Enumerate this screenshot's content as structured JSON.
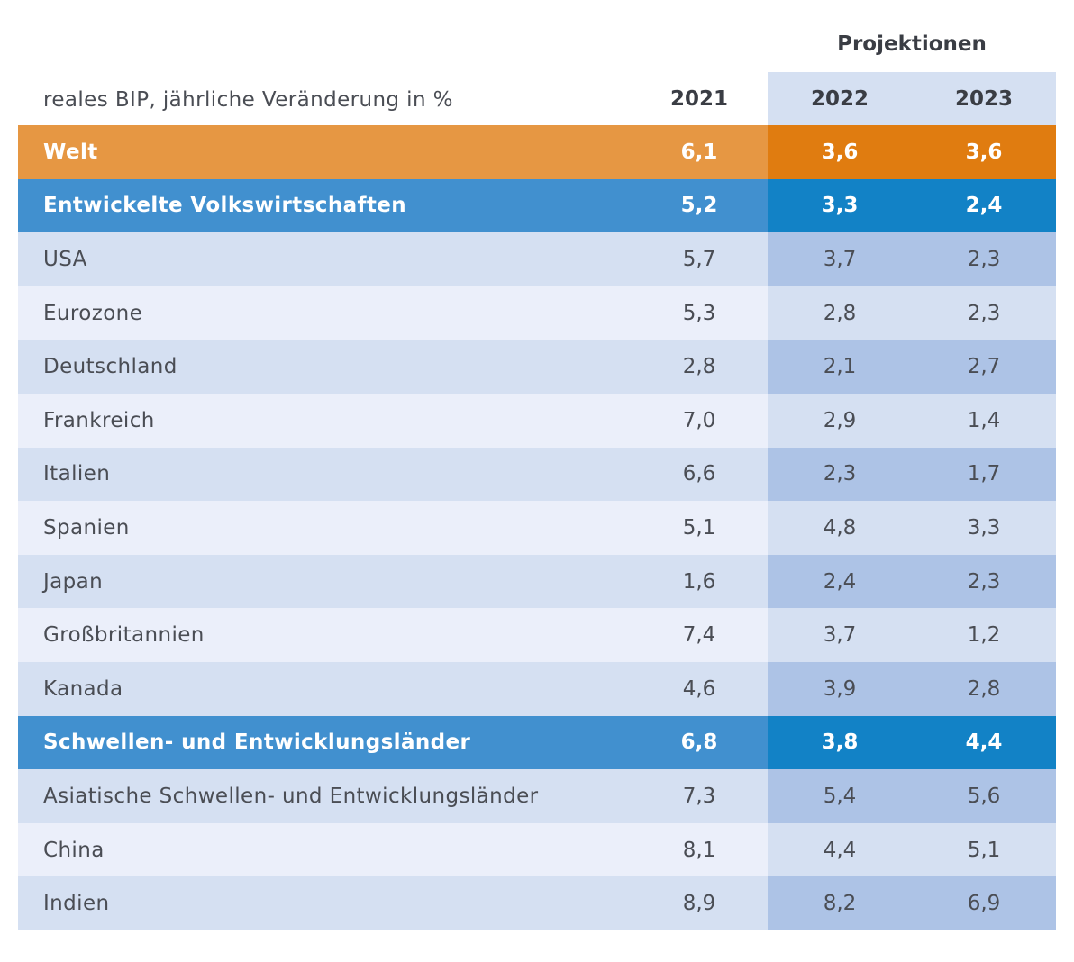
{
  "chart_data": {
    "type": "table",
    "title": "reales BIP, jährliche Veränderung in %",
    "group_label": "Projektionen",
    "columns": [
      "2021",
      "2022",
      "2023"
    ],
    "rows": [
      {
        "label": "Welt",
        "values": [
          "6,1",
          "3,6",
          "3,6"
        ],
        "style": "world"
      },
      {
        "label": "Entwickelte Volkswirtschaften",
        "values": [
          "5,2",
          "3,3",
          "2,4"
        ],
        "style": "blue"
      },
      {
        "label": "USA",
        "values": [
          "5,7",
          "3,7",
          "2,3"
        ],
        "style": "light-a"
      },
      {
        "label": "Eurozone",
        "values": [
          "5,3",
          "2,8",
          "2,3"
        ],
        "style": "light-b"
      },
      {
        "label": "Deutschland",
        "values": [
          "2,8",
          "2,1",
          "2,7"
        ],
        "style": "light-a"
      },
      {
        "label": "Frankreich",
        "values": [
          "7,0",
          "2,9",
          "1,4"
        ],
        "style": "light-b"
      },
      {
        "label": "Italien",
        "values": [
          "6,6",
          "2,3",
          "1,7"
        ],
        "style": "light-a"
      },
      {
        "label": "Spanien",
        "values": [
          "5,1",
          "4,8",
          "3,3"
        ],
        "style": "light-b"
      },
      {
        "label": "Japan",
        "values": [
          "1,6",
          "2,4",
          "2,3"
        ],
        "style": "light-a"
      },
      {
        "label": "Großbritannien",
        "values": [
          "7,4",
          "3,7",
          "1,2"
        ],
        "style": "light-b"
      },
      {
        "label": "Kanada",
        "values": [
          "4,6",
          "3,9",
          "2,8"
        ],
        "style": "light-a"
      },
      {
        "label": "Schwellen- und Entwicklungsländer",
        "values": [
          "6,8",
          "3,8",
          "4,4"
        ],
        "style": "blue"
      },
      {
        "label": "Asiatische Schwellen- und Entwicklungsländer",
        "values": [
          "7,3",
          "5,4",
          "5,6"
        ],
        "style": "light-a"
      },
      {
        "label": "China",
        "values": [
          "8,1",
          "4,4",
          "5,1"
        ],
        "style": "light-b"
      },
      {
        "label": "Indien",
        "values": [
          "8,9",
          "8,2",
          "6,9"
        ],
        "style": "light-a"
      }
    ]
  },
  "colors": {
    "world": "#e69743",
    "world_projection": "#e07c10",
    "group_blue": "#4190cf",
    "group_blue_projection": "#1282c6",
    "row_light": "#ebeffa",
    "row_mid": "#d5e0f2",
    "row_projection_dark": "#adc3e6"
  }
}
